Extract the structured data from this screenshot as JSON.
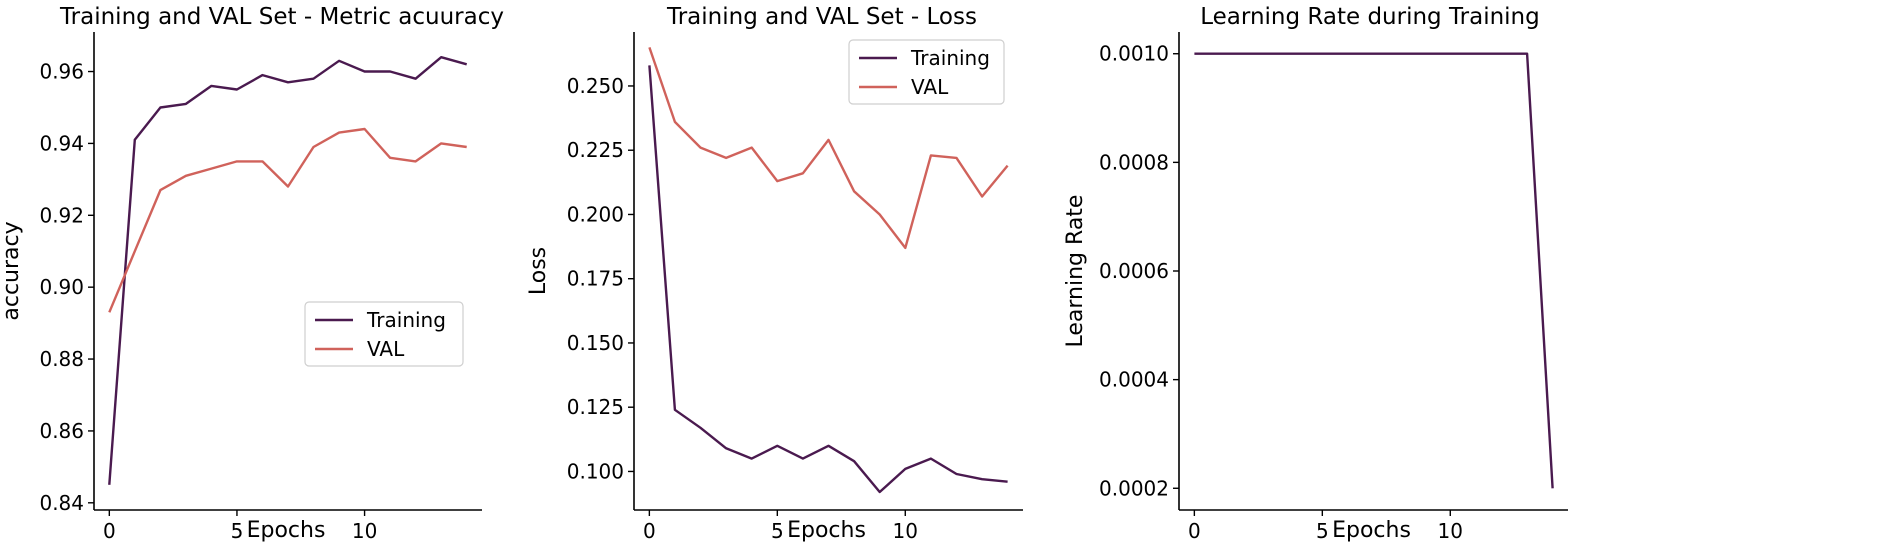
{
  "colors": {
    "training": "#4a1a4f",
    "val": "#d0625b"
  },
  "chart_data": [
    {
      "id": "acc",
      "type": "line",
      "title": "Training and VAL Set - Metric acuuracy",
      "xlabel": "Epochs",
      "ylabel": "accuracy",
      "xlim": [
        -0.6,
        14.6
      ],
      "ylim": [
        0.838,
        0.971
      ],
      "xticks": [
        0,
        5,
        10
      ],
      "xtick_labels": [
        "0",
        "5",
        "10"
      ],
      "yticks": [
        0.84,
        0.86,
        0.88,
        0.9,
        0.92,
        0.94,
        0.96
      ],
      "ytick_labels": [
        "0.84",
        "0.86",
        "0.88",
        "0.90",
        "0.92",
        "0.94",
        "0.96"
      ],
      "legend": "lower-right",
      "x": [
        0,
        1,
        2,
        3,
        4,
        5,
        6,
        7,
        8,
        9,
        10,
        11,
        12,
        13,
        14
      ],
      "series": [
        {
          "name": "Training",
          "color_key": "training",
          "values": [
            0.845,
            0.941,
            0.95,
            0.951,
            0.956,
            0.955,
            0.959,
            0.957,
            0.958,
            0.963,
            0.96,
            0.96,
            0.958,
            0.964,
            0.962
          ]
        },
        {
          "name": "VAL",
          "color_key": "val",
          "values": [
            0.893,
            0.91,
            0.927,
            0.931,
            0.933,
            0.935,
            0.935,
            0.928,
            0.939,
            0.943,
            0.944,
            0.936,
            0.935,
            0.94,
            0.939
          ]
        }
      ]
    },
    {
      "id": "loss",
      "type": "line",
      "title": "Training and VAL Set - Loss",
      "xlabel": "Epochs",
      "ylabel": "Loss",
      "xlim": [
        -0.6,
        14.6
      ],
      "ylim": [
        0.085,
        0.271
      ],
      "xticks": [
        0,
        5,
        10
      ],
      "xtick_labels": [
        "0",
        "5",
        "10"
      ],
      "yticks": [
        0.1,
        0.125,
        0.15,
        0.175,
        0.2,
        0.225,
        0.25
      ],
      "ytick_labels": [
        "0.100",
        "0.125",
        "0.150",
        "0.175",
        "0.200",
        "0.225",
        "0.250"
      ],
      "legend": "top-right",
      "x": [
        0,
        1,
        2,
        3,
        4,
        5,
        6,
        7,
        8,
        9,
        10,
        11,
        12,
        13,
        14
      ],
      "series": [
        {
          "name": "Training",
          "color_key": "training",
          "values": [
            0.258,
            0.124,
            0.117,
            0.109,
            0.105,
            0.11,
            0.105,
            0.11,
            0.104,
            0.092,
            0.101,
            0.105,
            0.099,
            0.097,
            0.096
          ]
        },
        {
          "name": "VAL",
          "color_key": "val",
          "values": [
            0.265,
            0.236,
            0.226,
            0.222,
            0.226,
            0.213,
            0.216,
            0.229,
            0.209,
            0.2,
            0.187,
            0.223,
            0.222,
            0.207,
            0.219
          ]
        }
      ]
    },
    {
      "id": "lr",
      "type": "line",
      "title": "Learning Rate during Training",
      "xlabel": "Epochs",
      "ylabel": "Learning Rate",
      "xlim": [
        -0.6,
        14.6
      ],
      "ylim": [
        0.00016,
        0.00104
      ],
      "xticks": [
        0,
        5,
        10
      ],
      "xtick_labels": [
        "0",
        "5",
        "10"
      ],
      "yticks": [
        0.0002,
        0.0004,
        0.0006,
        0.0008,
        0.001
      ],
      "ytick_labels": [
        "0.0002",
        "0.0004",
        "0.0006",
        "0.0008",
        "0.0010"
      ],
      "legend": "none",
      "x": [
        0,
        1,
        2,
        3,
        4,
        5,
        6,
        7,
        8,
        9,
        10,
        11,
        12,
        13,
        14
      ],
      "series": [
        {
          "name": "Learning Rate",
          "color_key": "training",
          "values": [
            0.001,
            0.001,
            0.001,
            0.001,
            0.001,
            0.001,
            0.001,
            0.001,
            0.001,
            0.001,
            0.001,
            0.001,
            0.001,
            0.001,
            0.0002
          ]
        }
      ]
    }
  ]
}
